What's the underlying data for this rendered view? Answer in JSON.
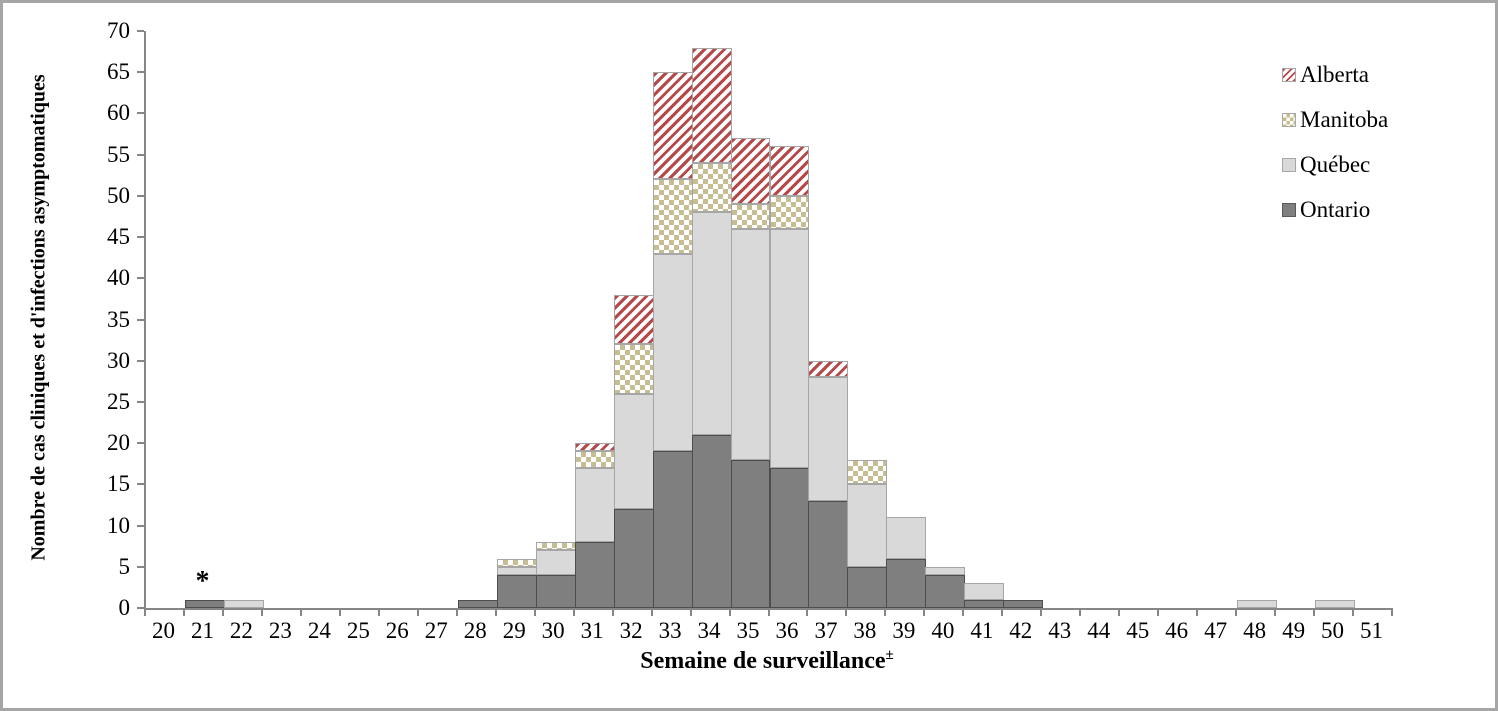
{
  "chart_data": {
    "type": "bar",
    "stacked": true,
    "xlabel": "Semaine de surveillance",
    "xlabel_superscript": "±",
    "ylabel": "Nombre de cas cliniques et d'infections asymptomatiques",
    "categories": [
      "20",
      "21",
      "22",
      "23",
      "24",
      "25",
      "26",
      "27",
      "28",
      "29",
      "30",
      "31",
      "32",
      "33",
      "34",
      "35",
      "36",
      "37",
      "38",
      "39",
      "40",
      "41",
      "42",
      "43",
      "44",
      "45",
      "46",
      "47",
      "48",
      "49",
      "50",
      "51"
    ],
    "series": [
      {
        "name": "Ontario",
        "key": "ontario",
        "color": "#7f7f7f",
        "pattern": "solid",
        "values": [
          0,
          1,
          0,
          0,
          0,
          0,
          0,
          0,
          1,
          4,
          4,
          8,
          12,
          19,
          21,
          18,
          17,
          13,
          5,
          6,
          4,
          1,
          1,
          0,
          0,
          0,
          0,
          0,
          0,
          0,
          0,
          0
        ]
      },
      {
        "name": "Québec",
        "key": "quebec",
        "color": "#d9d9d9",
        "pattern": "solid",
        "values": [
          0,
          0,
          1,
          0,
          0,
          0,
          0,
          0,
          0,
          1,
          3,
          9,
          14,
          24,
          27,
          28,
          29,
          15,
          10,
          5,
          1,
          2,
          0,
          0,
          0,
          0,
          0,
          0,
          1,
          0,
          1,
          0
        ]
      },
      {
        "name": "Manitoba",
        "key": "manitoba",
        "color": "#c6bd92",
        "pattern": "checkerboard",
        "values": [
          0,
          0,
          0,
          0,
          0,
          0,
          0,
          0,
          0,
          1,
          1,
          2,
          6,
          9,
          6,
          3,
          4,
          0,
          3,
          0,
          0,
          0,
          0,
          0,
          0,
          0,
          0,
          0,
          0,
          0,
          0,
          0
        ]
      },
      {
        "name": "Alberta",
        "key": "alberta",
        "color": "#b5494a",
        "pattern": "diagonal-stripes",
        "values": [
          0,
          0,
          0,
          0,
          0,
          0,
          0,
          0,
          0,
          0,
          0,
          1,
          6,
          13,
          14,
          8,
          6,
          2,
          0,
          0,
          0,
          0,
          0,
          0,
          0,
          0,
          0,
          0,
          0,
          0,
          0,
          0
        ]
      }
    ],
    "legend": {
      "position": "top-right",
      "order_top_to_bottom": [
        "Alberta",
        "Manitoba",
        "Québec",
        "Ontario"
      ]
    },
    "ylim": [
      0,
      70
    ],
    "ytick_step": 5,
    "grid": false,
    "axis_color": "#868686",
    "annotations": [
      {
        "text": "*",
        "category": "21",
        "y": 1
      }
    ]
  }
}
